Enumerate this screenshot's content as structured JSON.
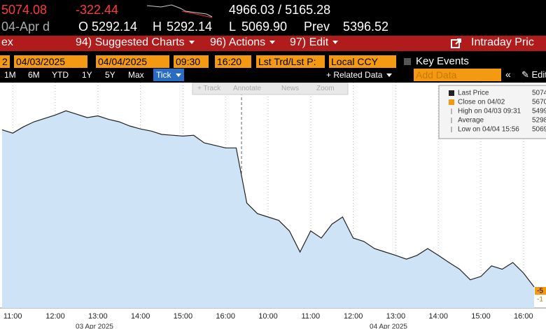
{
  "quote": {
    "last": "5074.08",
    "change": "-322.44",
    "bid_ask": "4966.03 / 5165.28",
    "date": "04-Apr d",
    "open_label": "O",
    "open": "5292.14",
    "high_label": "H",
    "high": "5292.14",
    "low_label": "L",
    "low": "5069.90",
    "prev_label": "Prev",
    "prev": "5396.52"
  },
  "menu": {
    "left": "ex",
    "items": [
      "94) Suggested Charts",
      "96) Actions",
      "97) Edit"
    ],
    "title": "Intraday Pric"
  },
  "controls": {
    "field0": "2",
    "start_date": "04/03/2025",
    "end_date": "04/04/2025",
    "start_time": "09:30",
    "end_time": "16:20",
    "price_type": "Lst Trd/Lst P:",
    "currency": "Local CCY",
    "key_events": "Key Events"
  },
  "ranges": [
    "1M",
    "6M",
    "YTD",
    "1Y",
    "5Y",
    "Max",
    "Tick"
  ],
  "related_data": "+ Related Data",
  "add_data": "Add Data",
  "edit": "Edit",
  "chart_tools": [
    "+ Track",
    "Annotate",
    "News",
    "Zoom"
  ],
  "chart_data": {
    "type": "line",
    "categories": [
      null,
      "11:00",
      null,
      null,
      null,
      "12:00",
      null,
      null,
      null,
      "13:00",
      null,
      null,
      null,
      "14:00",
      null,
      null,
      null,
      "15:00",
      null,
      null,
      null,
      "16:00",
      null,
      null,
      null,
      "10:00",
      null,
      null,
      null,
      "11:00",
      null,
      null,
      null,
      "12:00",
      null,
      null,
      null,
      "13:00",
      null,
      null,
      null,
      "14:00",
      null,
      null,
      null,
      "15:00",
      null,
      null,
      null,
      "16:00",
      null
    ],
    "date_labels": [
      "03 Apr 2025",
      "04 Apr 2025"
    ],
    "series": [
      {
        "name": "Last Price",
        "color": "#222222",
        "fill": "#cfe3f7",
        "values": [
          5443,
          5435,
          5450,
          5462,
          5470,
          5478,
          5488,
          5480,
          5472,
          5476,
          5468,
          5462,
          5452,
          5445,
          5440,
          5432,
          5430,
          5428,
          5430,
          5412,
          5406,
          5400,
          5400,
          5269,
          5244,
          5236,
          5228,
          5203,
          5153,
          5203,
          5186,
          5219,
          5236,
          5186,
          5178,
          5161,
          5153,
          5145,
          5136,
          5145,
          5161,
          5145,
          5128,
          5112,
          5087,
          5095,
          5120,
          5112,
          5128,
          5103,
          5070
        ]
      }
    ],
    "ylim": [
      5020,
      5555
    ],
    "legend_items": [
      {
        "label": "Last Price",
        "value": "5074"
      },
      {
        "label": "Close on 04/02",
        "value": "5670"
      },
      {
        "label": "High on 04/03 09:31",
        "value": "5499"
      },
      {
        "label": "Average",
        "value": "5298"
      },
      {
        "label": "Low on 04/04 15:56",
        "value": "5069"
      }
    ],
    "right_tags": [
      "-5",
      "-1"
    ]
  }
}
